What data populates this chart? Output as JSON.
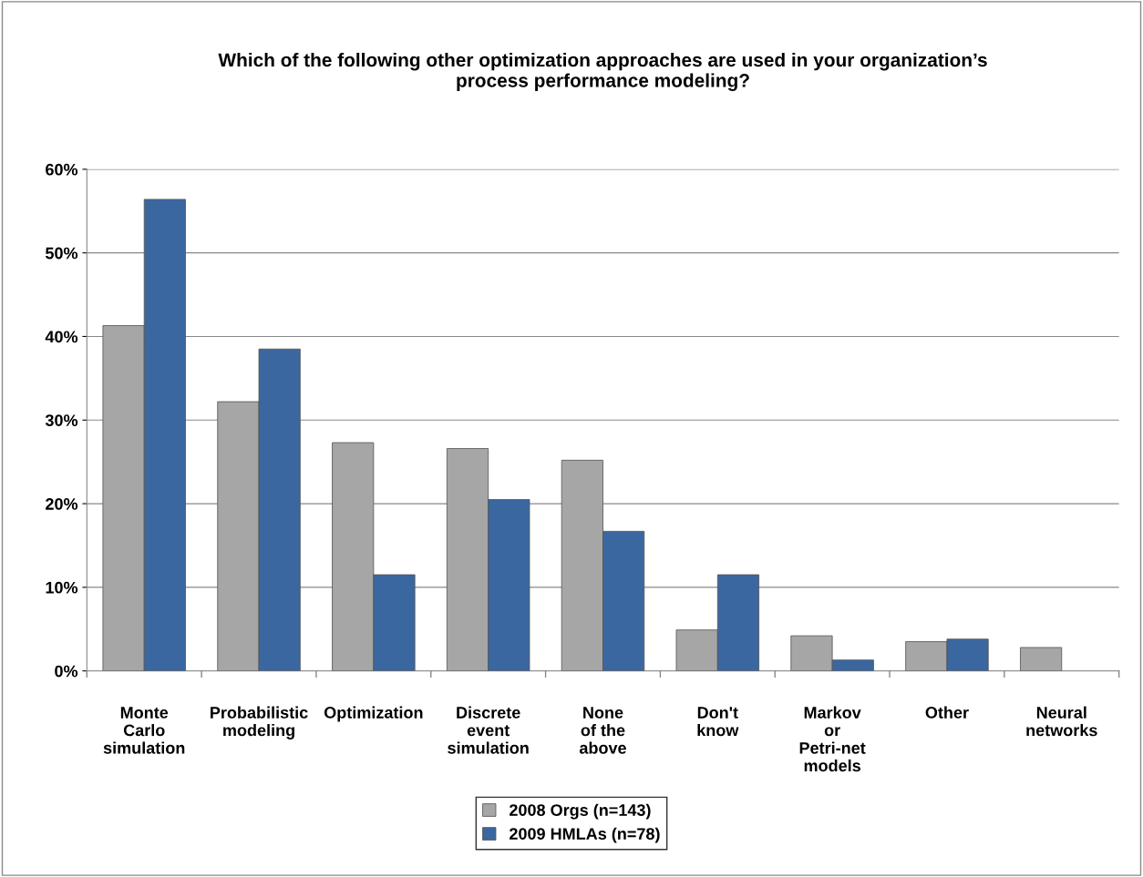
{
  "chart_data": {
    "type": "bar",
    "title": "Which of the following other optimization approaches are used in your organization’s\nprocess performance modeling?",
    "categories": [
      "Monte\nCarlo\nsimulation",
      "Probabilistic\nmodeling",
      "Optimization",
      "Discrete\nevent\nsimulation",
      "None\nof the\nabove",
      "Don't\nknow",
      "Markov\nor\nPetri-net\nmodels",
      "Other",
      "Neural\nnetworks"
    ],
    "series": [
      {
        "name": "2008 Orgs (n=143)",
        "color": "#a6a6a6",
        "values": [
          41.3,
          32.2,
          27.3,
          26.6,
          25.2,
          4.9,
          4.2,
          3.5,
          2.8
        ]
      },
      {
        "name": "2009 HMLAs (n=78)",
        "color": "#3a67a0",
        "values": [
          56.4,
          38.5,
          11.5,
          20.5,
          16.7,
          11.5,
          1.3,
          3.8,
          null
        ]
      }
    ],
    "ylim": [
      0,
      60
    ],
    "yticks": [
      {
        "value": 0,
        "label": "0%"
      },
      {
        "value": 10,
        "label": "10%"
      },
      {
        "value": 20,
        "label": "20%"
      },
      {
        "value": 30,
        "label": "30%"
      },
      {
        "value": 40,
        "label": "40%"
      },
      {
        "value": 50,
        "label": "50%"
      },
      {
        "value": 60,
        "label": "60%"
      }
    ],
    "grid": "y",
    "legend": "bottom"
  }
}
